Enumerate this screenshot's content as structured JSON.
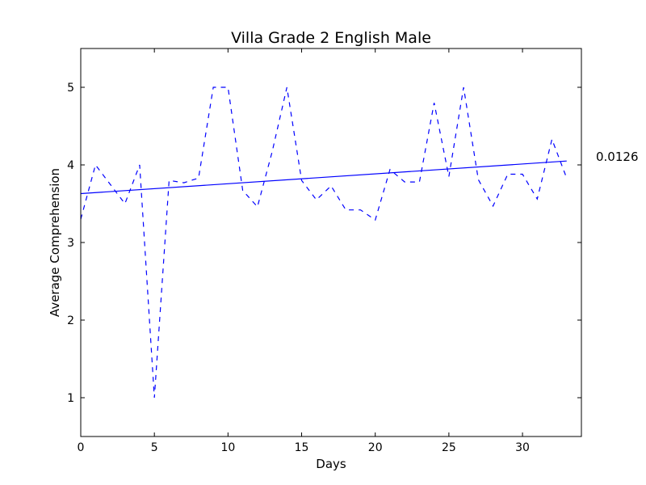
{
  "chart_data": {
    "type": "line",
    "title": "Villa Grade 2 English Male",
    "xlabel": "Days",
    "ylabel": "Average Comprehension",
    "xlim": [
      0,
      34
    ],
    "ylim": [
      0.5,
      5.5
    ],
    "xticks": [
      0,
      5,
      10,
      15,
      20,
      25,
      30
    ],
    "yticks": [
      1,
      2,
      3,
      4,
      5
    ],
    "grid": false,
    "series": [
      {
        "style": "dashed",
        "color": "#0000ff",
        "x": [
          0,
          1,
          2,
          3,
          4,
          5,
          6,
          7,
          8,
          9,
          10,
          11,
          12,
          13,
          14,
          15,
          16,
          17,
          18,
          19,
          20,
          21,
          22,
          23,
          24,
          25,
          26,
          27,
          28,
          29,
          30,
          31,
          32,
          33
        ],
        "y": [
          3.3,
          4.0,
          3.75,
          3.5,
          4.0,
          1.0,
          3.8,
          3.77,
          3.83,
          5.0,
          5.0,
          3.67,
          3.46,
          4.17,
          5.0,
          3.8,
          3.55,
          3.73,
          3.42,
          3.42,
          3.29,
          3.94,
          3.78,
          3.78,
          4.8,
          3.85,
          5.0,
          3.81,
          3.47,
          3.88,
          3.88,
          3.56,
          4.33,
          3.83
        ]
      },
      {
        "style": "solid",
        "color": "#0000ff",
        "x": [
          0,
          33
        ],
        "y": [
          3.63,
          4.05
        ]
      }
    ],
    "annotation": "0.0126"
  }
}
